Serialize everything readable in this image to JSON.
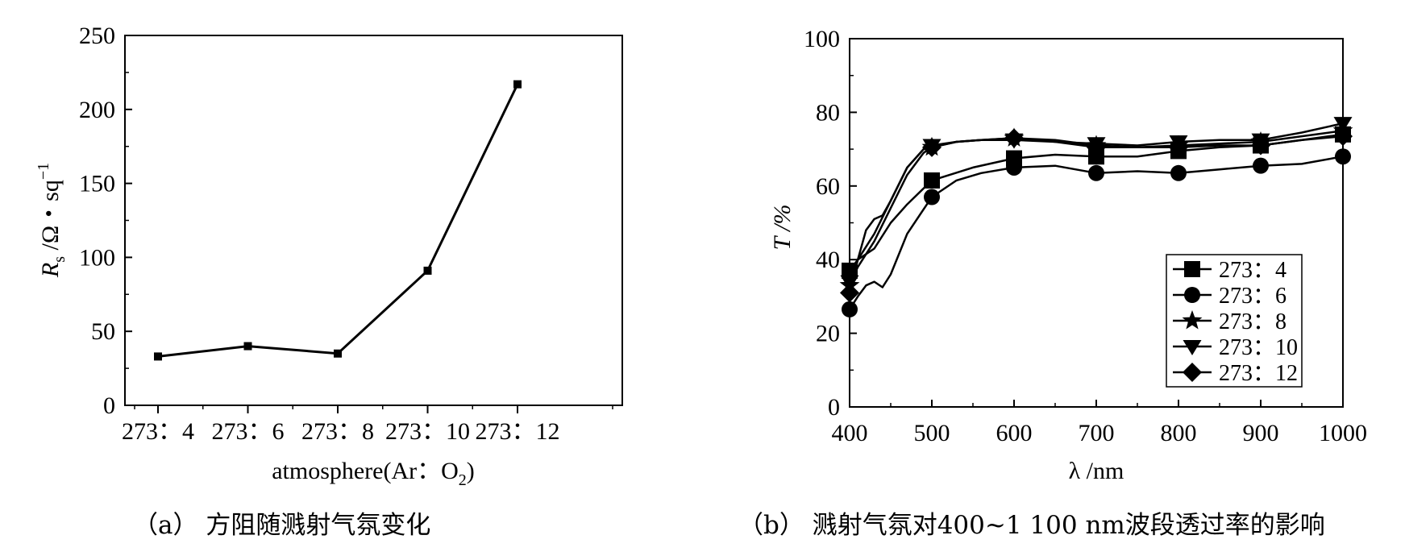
{
  "captions": {
    "a": "（a）  方阻随溅射气氛变化",
    "b": "（b）  溅射气氛对400~1 100 nm波段透过率的影响"
  },
  "chart_data": [
    {
      "id": "a",
      "type": "line",
      "xlabel_main": "atmosphere(Ar：O",
      "xlabel_sub": "2",
      "xlabel_end": ")",
      "ylabel_main": "R",
      "ylabel_sub": "s",
      "ylabel_rest": " /Ω・sq",
      "ylabel_sup": "−1",
      "categories": [
        "273：4",
        "273：6",
        "273：8",
        "273：10",
        "273：12"
      ],
      "values": [
        33,
        40,
        35,
        91,
        217
      ],
      "ylim": [
        0,
        250
      ],
      "yticks": [
        "0",
        "50",
        "100",
        "150",
        "200",
        "250"
      ],
      "marker": "square",
      "grid": false
    },
    {
      "id": "b",
      "type": "line",
      "xlabel": "λ /nm",
      "ylabel": "T /%",
      "xlim": [
        400,
        1000
      ],
      "ylim": [
        0,
        100
      ],
      "xticks": [
        "400",
        "500",
        "600",
        "700",
        "800",
        "900",
        "1000"
      ],
      "yticks": [
        "0",
        "20",
        "40",
        "60",
        "80",
        "100"
      ],
      "legend_position": "bottom-right",
      "grid": false,
      "series": [
        {
          "name": "273：4",
          "marker": "square",
          "x": [
            400,
            410,
            430,
            450,
            470,
            500,
            550,
            600,
            650,
            700,
            750,
            800,
            850,
            900,
            950,
            1000
          ],
          "y": [
            37,
            40,
            43,
            50,
            55,
            61.5,
            65,
            67.5,
            68.5,
            68,
            68,
            69.5,
            70.5,
            71,
            72.5,
            74
          ]
        },
        {
          "name": "273：6",
          "marker": "circle",
          "x": [
            400,
            410,
            420,
            430,
            440,
            450,
            470,
            500,
            530,
            560,
            600,
            650,
            700,
            750,
            800,
            850,
            900,
            950,
            1000
          ],
          "y": [
            26.5,
            30,
            33,
            34,
            32.5,
            36,
            47,
            57,
            61.5,
            63.5,
            65,
            65.5,
            63.5,
            64,
            63.5,
            64.5,
            65.5,
            66,
            68
          ]
        },
        {
          "name": "273：8",
          "marker": "star",
          "x": [
            400,
            410,
            430,
            450,
            470,
            490,
            500,
            530,
            560,
            600,
            650,
            700,
            750,
            800,
            850,
            900,
            950,
            1000
          ],
          "y": [
            33,
            38,
            45,
            54,
            63,
            69,
            70.5,
            72,
            72.5,
            73,
            72.5,
            71,
            70.5,
            71,
            71.5,
            72,
            73.5,
            75
          ]
        },
        {
          "name": "273：10",
          "marker": "triangle-down",
          "x": [
            400,
            410,
            430,
            450,
            470,
            490,
            500,
            530,
            560,
            600,
            650,
            700,
            750,
            800,
            850,
            900,
            950,
            1000
          ],
          "y": [
            34,
            40,
            47,
            56,
            65,
            70,
            71,
            72,
            72.5,
            72.5,
            72,
            71.5,
            71,
            72,
            72.5,
            72.5,
            74.5,
            77
          ]
        },
        {
          "name": "273：12",
          "marker": "diamond",
          "x": [
            400,
            410,
            420,
            430,
            440,
            450,
            470,
            490,
            500,
            530,
            560,
            600,
            650,
            700,
            750,
            800,
            850,
            900,
            950,
            1000
          ],
          "y": [
            31,
            40,
            48,
            51,
            52,
            56,
            65,
            70,
            70.5,
            72,
            72.5,
            73,
            72,
            70.5,
            70.5,
            70.5,
            71,
            71,
            72.5,
            73.5
          ]
        }
      ]
    }
  ]
}
